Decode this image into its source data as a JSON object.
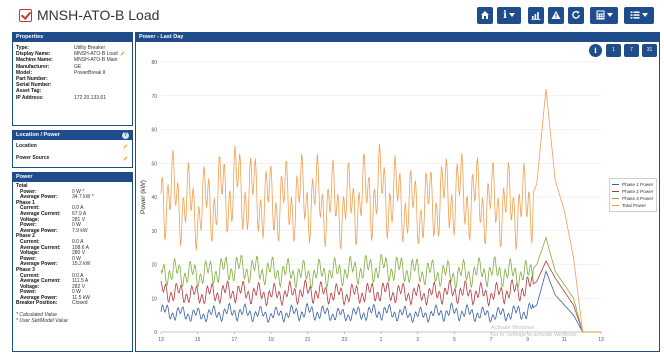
{
  "window": {
    "title": "MNSH-ATO-B Load"
  },
  "toolbar": {
    "buttons": [
      {
        "name": "home-button",
        "icon": "home-icon",
        "dropdown": false
      },
      {
        "name": "info-button",
        "icon": "info-icon",
        "dropdown": true
      },
      {
        "name": "trends-button",
        "icon": "bar-chart-icon",
        "dropdown": false
      },
      {
        "name": "alarms-button",
        "icon": "warning-icon",
        "dropdown": false
      },
      {
        "name": "refresh-button",
        "icon": "refresh-icon",
        "dropdown": false
      },
      {
        "name": "calculator-button",
        "icon": "calculator-icon",
        "dropdown": true
      },
      {
        "name": "menu-button",
        "icon": "list-icon",
        "dropdown": true
      }
    ]
  },
  "properties": {
    "header": "Properties",
    "rows": [
      {
        "label": "Type:",
        "value": "Utility Breaker",
        "editable": false
      },
      {
        "label": "Display Name:",
        "value": "MNSH-ATO-B Load",
        "editable": true
      },
      {
        "label": "Machine Name:",
        "value": "MNSH-ATO-B Main",
        "editable": false
      },
      {
        "label": "Manufacturer:",
        "value": "GE",
        "editable": false
      },
      {
        "label": "Model:",
        "value": "PowerBreak II",
        "editable": false
      },
      {
        "label": "Part Number:",
        "value": "",
        "editable": false
      },
      {
        "label": "Serial Number:",
        "value": "",
        "editable": false
      },
      {
        "label": "Asset Tag:",
        "value": "",
        "editable": false
      },
      {
        "label": "IP Address:",
        "value": "172.20.133.61",
        "editable": false
      }
    ]
  },
  "location_power": {
    "header": "Location / Power",
    "help": "?",
    "rows": [
      {
        "label": "Location"
      },
      {
        "label": "Power Source"
      }
    ]
  },
  "power": {
    "header": "Power",
    "total": {
      "label": "Total",
      "rows": [
        {
          "label": "Power:",
          "value": "0 W *"
        },
        {
          "label": "Average Power:",
          "value": "34.7 kW *"
        }
      ]
    },
    "phases": [
      {
        "label": "Phase 1",
        "rows": [
          {
            "label": "Current:",
            "value": "0.0 A"
          },
          {
            "label": "Average Current:",
            "value": "67.9 A"
          },
          {
            "label": "Voltage:",
            "value": "281 V"
          },
          {
            "label": "Power:",
            "value": "0 W"
          },
          {
            "label": "Average Power:",
            "value": "7.9 kW"
          }
        ]
      },
      {
        "label": "Phase 2",
        "rows": [
          {
            "label": "Current:",
            "value": "0.0 A"
          },
          {
            "label": "Average Current:",
            "value": "108.6 A"
          },
          {
            "label": "Voltage:",
            "value": "280 V"
          },
          {
            "label": "Power:",
            "value": "0 W"
          },
          {
            "label": "Average Power:",
            "value": "15.2 kW"
          }
        ]
      },
      {
        "label": "Phase 3",
        "rows": [
          {
            "label": "Current:",
            "value": "0.0 A"
          },
          {
            "label": "Average Current:",
            "value": "111.5 A"
          },
          {
            "label": "Voltage:",
            "value": "282 V"
          },
          {
            "label": "Power:",
            "value": "0 W"
          },
          {
            "label": "Average Power:",
            "value": "11.5 kW"
          }
        ]
      }
    ],
    "breaker": {
      "label": "Breaker Position:",
      "value": "Closed"
    },
    "notes": [
      "* Calculated Value",
      "* User Set/Model Value"
    ]
  },
  "chart_panel": {
    "header": "Power - Last Day",
    "buttons": [
      {
        "name": "chart-info-button",
        "label": "i"
      },
      {
        "name": "range-1-day-button",
        "label": "1"
      },
      {
        "name": "range-7-day-button",
        "label": "7"
      },
      {
        "name": "range-31-day-button",
        "label": "31"
      }
    ],
    "watermark": [
      "Activate Windows",
      "Go to Settings to activate Windows."
    ]
  },
  "chart_data": {
    "type": "line",
    "title": "",
    "xlabel": "",
    "ylabel": "Power (kW)",
    "ylim": [
      0,
      80
    ],
    "yticks": [
      0,
      10,
      20,
      30,
      40,
      50,
      60,
      70,
      80
    ],
    "xticks": [
      "13",
      "15",
      "17",
      "19",
      "21",
      "23",
      "1",
      "3",
      "5",
      "7",
      "9",
      "11",
      "13"
    ],
    "grid": true,
    "legend_placement": "right",
    "x_hours": [
      0,
      2,
      4,
      6,
      8,
      10,
      12,
      14,
      16,
      18,
      20,
      20.5,
      21,
      21.5,
      22,
      22.5,
      23,
      24
    ],
    "series": [
      {
        "name": "Phase 1 Power",
        "color": "#3a5fa8",
        "values": [
          6,
          5,
          6,
          5,
          6,
          5,
          6,
          5,
          6,
          5,
          6,
          8,
          18,
          11,
          8,
          5,
          0,
          0
        ]
      },
      {
        "name": "Phase 2 Power",
        "color": "#b23a3a",
        "values": [
          12,
          11,
          12,
          11,
          12,
          11,
          12,
          11,
          12,
          11,
          13,
          15,
          21,
          16,
          12,
          8,
          0,
          0
        ]
      },
      {
        "name": "Phase 3 Power",
        "color": "#7fae3a",
        "values": [
          18,
          17,
          19,
          18,
          17,
          18,
          19,
          18,
          17,
          18,
          17,
          20,
          28,
          18,
          14,
          10,
          0,
          0
        ]
      },
      {
        "name": "Total Power",
        "color": "#f0a050",
        "values": [
          42,
          36,
          43,
          38,
          40,
          37,
          42,
          36,
          41,
          38,
          37,
          44,
          72,
          45,
          36,
          22,
          0,
          0
        ]
      }
    ]
  }
}
